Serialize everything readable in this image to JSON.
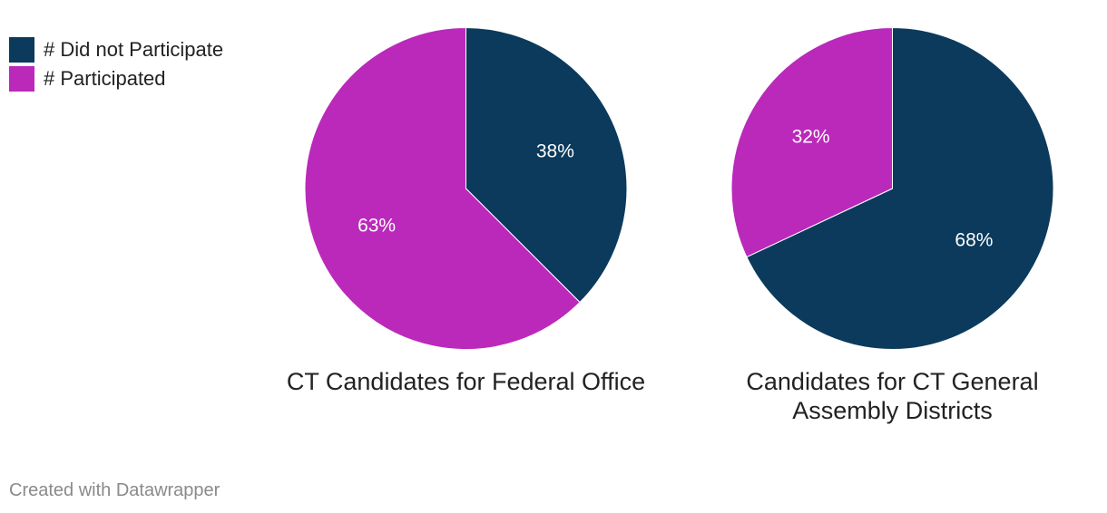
{
  "legend": [
    {
      "label": "# Did not Participate",
      "color": "#0b3a5c"
    },
    {
      "label": "# Participated",
      "color": "#bb29bb"
    }
  ],
  "chart_data": [
    {
      "type": "pie",
      "title": "CT Candidates for Federal Office",
      "slices": [
        {
          "name": "# Did not Participate",
          "value": 37.5,
          "label": "38%",
          "color": "#0b3a5c"
        },
        {
          "name": "# Participated",
          "value": 62.5,
          "label": "63%",
          "color": "#bb29bb"
        }
      ]
    },
    {
      "type": "pie",
      "title": "Candidates for CT General Assembly Districts",
      "slices": [
        {
          "name": "# Did not Participate",
          "value": 68,
          "label": "68%",
          "color": "#0b3a5c"
        },
        {
          "name": "# Participated",
          "value": 32,
          "label": "32%",
          "color": "#bb29bb"
        }
      ]
    }
  ],
  "footer": {
    "credit": "Created with Datawrapper"
  }
}
